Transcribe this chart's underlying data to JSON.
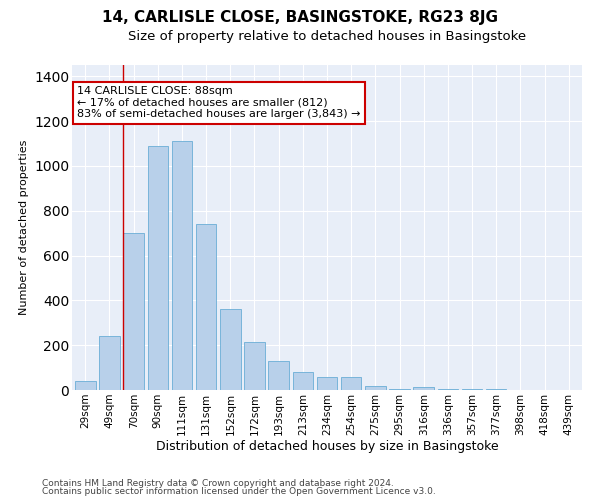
{
  "title": "14, CARLISLE CLOSE, BASINGSTOKE, RG23 8JG",
  "subtitle": "Size of property relative to detached houses in Basingstoke",
  "xlabel": "Distribution of detached houses by size in Basingstoke",
  "ylabel": "Number of detached properties",
  "footnote1": "Contains HM Land Registry data © Crown copyright and database right 2024.",
  "footnote2": "Contains public sector information licensed under the Open Government Licence v3.0.",
  "categories": [
    "29sqm",
    "49sqm",
    "70sqm",
    "90sqm",
    "111sqm",
    "131sqm",
    "152sqm",
    "172sqm",
    "193sqm",
    "213sqm",
    "234sqm",
    "254sqm",
    "275sqm",
    "295sqm",
    "316sqm",
    "336sqm",
    "357sqm",
    "377sqm",
    "398sqm",
    "418sqm",
    "439sqm"
  ],
  "values": [
    40,
    240,
    700,
    1090,
    1110,
    740,
    360,
    215,
    130,
    80,
    60,
    60,
    20,
    5,
    15,
    5,
    5,
    5,
    0,
    0,
    0
  ],
  "bar_color": "#b8d0ea",
  "bar_edge_color": "#6aaed6",
  "background_color": "#e8eef8",
  "grid_color": "#ffffff",
  "annotation_text": "14 CARLISLE CLOSE: 88sqm\n← 17% of detached houses are smaller (812)\n83% of semi-detached houses are larger (3,843) →",
  "annotation_box_color": "#ffffff",
  "annotation_box_edge_color": "#cc0000",
  "redline_x": 1.57,
  "ylim": [
    0,
    1450
  ],
  "title_fontsize": 11,
  "subtitle_fontsize": 9.5,
  "xlabel_fontsize": 9,
  "ylabel_fontsize": 8,
  "tick_fontsize": 7.5,
  "annotation_fontsize": 8,
  "footnote_fontsize": 6.5
}
